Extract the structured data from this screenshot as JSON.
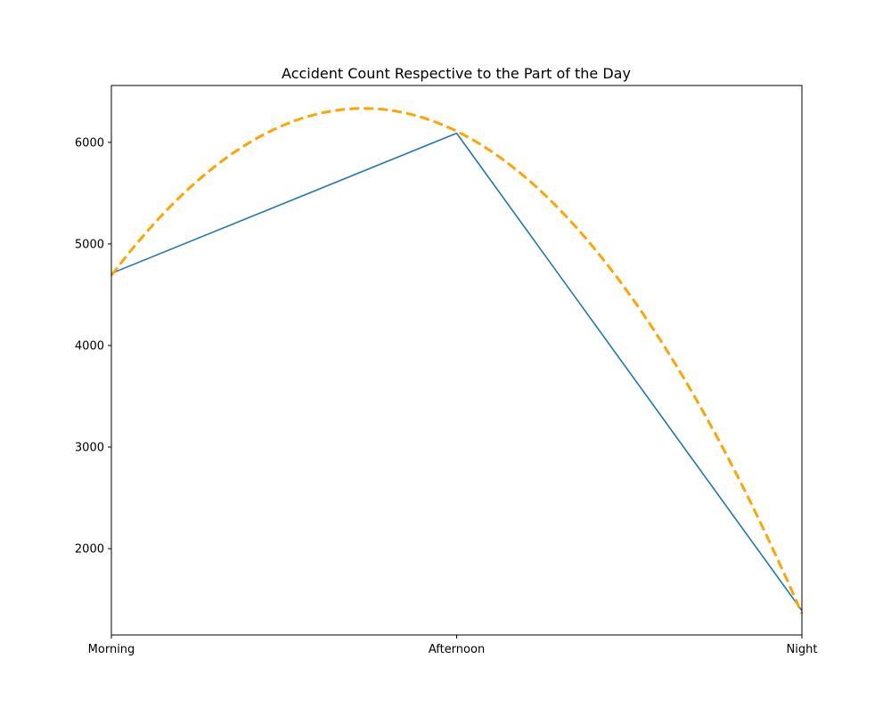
{
  "chart_data": {
    "type": "line",
    "title": "Accident Count Respective to the Part of the Day",
    "xlabel": "",
    "ylabel": "",
    "categories": [
      "Morning",
      "Afternoon",
      "Night"
    ],
    "ylim": [
      1150,
      6560
    ],
    "yticks": [
      2000,
      3000,
      4000,
      5000,
      6000
    ],
    "grid": false,
    "legend": "none",
    "series": [
      {
        "style": "solid",
        "color": "#1f77b4",
        "values": [
          4710,
          6090,
          1390
        ]
      },
      {
        "style": "dashed",
        "kind": "quadratic-trend",
        "color": "#ffa500",
        "values": [
          4690,
          6110,
          1360
        ]
      }
    ]
  }
}
